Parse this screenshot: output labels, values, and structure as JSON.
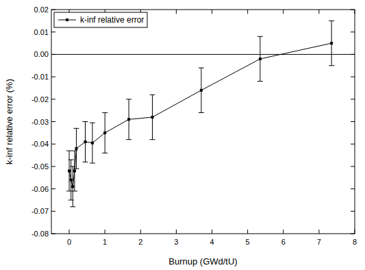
{
  "chart_data": {
    "type": "line",
    "x_label": "Burnup (GWd/tU)",
    "y_label": "k-inf relative error (%)",
    "x": [
      0,
      0.05,
      0.1,
      0.15,
      0.2,
      0.45,
      0.65,
      1.0,
      1.67,
      2.33,
      3.7,
      5.35,
      7.35
    ],
    "series": [
      {
        "name": "k-inf relative error",
        "color": "#000000",
        "marker": "square",
        "line_style": "solid",
        "values": [
          -0.052,
          -0.056,
          -0.059,
          -0.052,
          -0.042,
          -0.039,
          -0.0395,
          -0.035,
          -0.029,
          -0.028,
          -0.016,
          -0.002,
          0.005
        ],
        "errors": [
          0.009,
          0.009,
          0.009,
          0.009,
          0.009,
          0.009,
          0.009,
          0.009,
          0.009,
          0.01,
          0.01,
          0.01,
          0.01
        ]
      }
    ],
    "xlim": [
      -0.5,
      8
    ],
    "xticks": [
      0,
      1,
      2,
      3,
      4,
      5,
      6,
      7,
      8
    ],
    "ylim": [
      -0.08,
      0.02
    ],
    "yticks": [
      -0.08,
      -0.07,
      -0.06,
      -0.05,
      -0.04,
      -0.03,
      -0.02,
      -0.01,
      {
        "value": 0,
        "label": "0.00"
      },
      0.01,
      0.02
    ],
    "reference_y": 0,
    "grid": false,
    "legend": "upper-left"
  }
}
